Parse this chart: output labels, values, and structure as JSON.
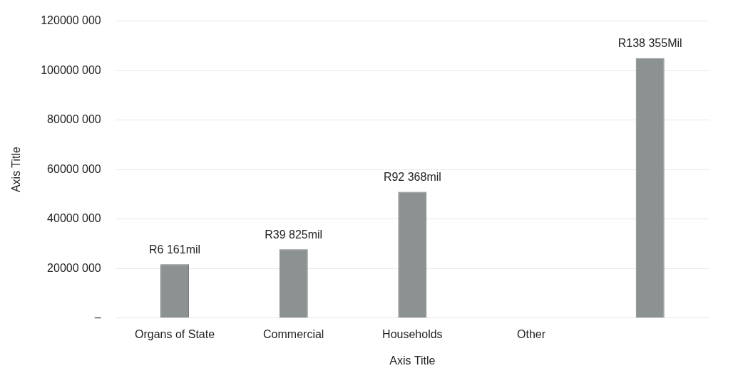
{
  "chart_data": {
    "type": "bar",
    "xlabel": "Axis Title",
    "ylabel": "Axis Title",
    "categories": [
      "Organs of State",
      "Commercial",
      "Households",
      "Other",
      null
    ],
    "values": [
      21700000,
      27700000,
      51000000,
      null,
      105000000
    ],
    "value_labels": [
      "R6 161mil",
      "R39 825mil",
      "R92 368mil",
      null,
      "R138 355Mil"
    ],
    "color": "#8c9191",
    "ylim": [
      0,
      120000000
    ],
    "yticks": [
      {
        "value": 0,
        "label": "–"
      },
      {
        "value": 20000000,
        "label": "20000 000"
      },
      {
        "value": 40000000,
        "label": "40000 000"
      },
      {
        "value": 60000000,
        "label": "60000 000"
      },
      {
        "value": 80000000,
        "label": "80000 000"
      },
      {
        "value": 100000000,
        "label": "100000 000"
      },
      {
        "value": 120000000,
        "label": "120000 000"
      }
    ],
    "grid": "y",
    "legend": false
  }
}
